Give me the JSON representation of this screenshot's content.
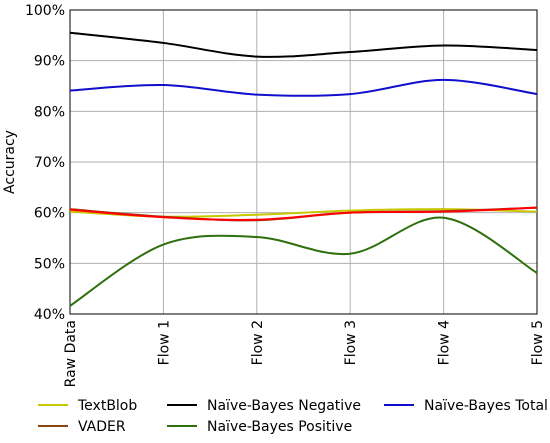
{
  "chart_data": {
    "type": "line",
    "title": "",
    "xlabel": "",
    "ylabel": "Accuracy",
    "categories": [
      "Raw Data",
      "Flow 1",
      "Flow 2",
      "Flow 3",
      "Flow 4",
      "Flow 5"
    ],
    "y_ticks": [
      "40%",
      "50%",
      "60%",
      "70%",
      "80%",
      "90%",
      "100%"
    ],
    "ylim": [
      40,
      100
    ],
    "grid": true,
    "legend_position": "bottom",
    "series": [
      {
        "name": "TextBlob",
        "color": "#c8c800",
        "values": [
          60.2,
          59.2,
          59.6,
          60.4,
          60.7,
          60.2
        ]
      },
      {
        "name": "VADER",
        "color": "#8b4513",
        "values": [
          60.7,
          59.2,
          58.5,
          60.0,
          60.3,
          61.0
        ]
      },
      {
        "name": "Naïve-Bayes Negative",
        "color": "#000000",
        "values": [
          95.5,
          93.5,
          90.8,
          91.7,
          93.0,
          92.1
        ]
      },
      {
        "name": "Naïve-Bayes Positive",
        "color": "#2e6f0e",
        "values": [
          41.6,
          53.7,
          55.2,
          51.9,
          59.0,
          48.1
        ]
      },
      {
        "name": "Naïve-Bayes Total",
        "color": "#1010cc",
        "values": [
          84.1,
          85.2,
          83.3,
          83.4,
          86.2,
          83.4
        ]
      }
    ],
    "overlay_series": [
      {
        "color": "#ff0000",
        "values": [
          60.6,
          59.1,
          58.6,
          60.0,
          60.2,
          61.0
        ]
      }
    ]
  }
}
